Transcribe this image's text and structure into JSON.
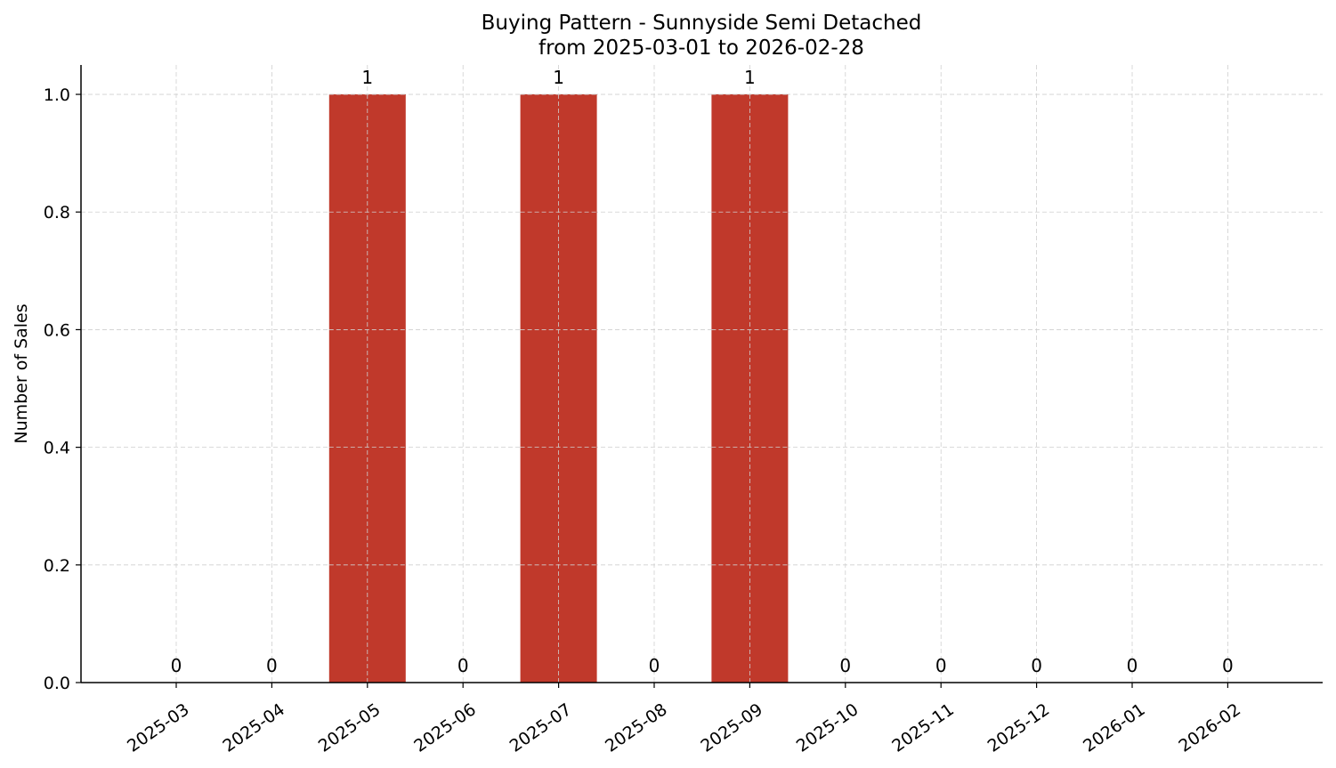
{
  "chart_data": {
    "type": "bar",
    "title": "Buying Pattern - Sunnyside Semi Detached",
    "subtitle": "from 2025-03-01 to 2026-02-28",
    "xlabel": "",
    "ylabel": "Number of Sales",
    "categories": [
      "2025-03",
      "2025-04",
      "2025-05",
      "2025-06",
      "2025-07",
      "2025-08",
      "2025-09",
      "2025-10",
      "2025-11",
      "2025-12",
      "2026-01",
      "2026-02"
    ],
    "values": [
      0,
      0,
      1,
      0,
      1,
      0,
      1,
      0,
      0,
      0,
      0,
      0
    ],
    "data_labels": [
      "0",
      "0",
      "1",
      "0",
      "1",
      "0",
      "1",
      "0",
      "0",
      "0",
      "0",
      "0"
    ],
    "ylim": [
      0,
      1.05
    ],
    "yticks": [
      "0.0",
      "0.2",
      "0.4",
      "0.6",
      "0.8",
      "1.0"
    ],
    "grid": true,
    "bar_color": "#c0392b",
    "legend": "none"
  }
}
